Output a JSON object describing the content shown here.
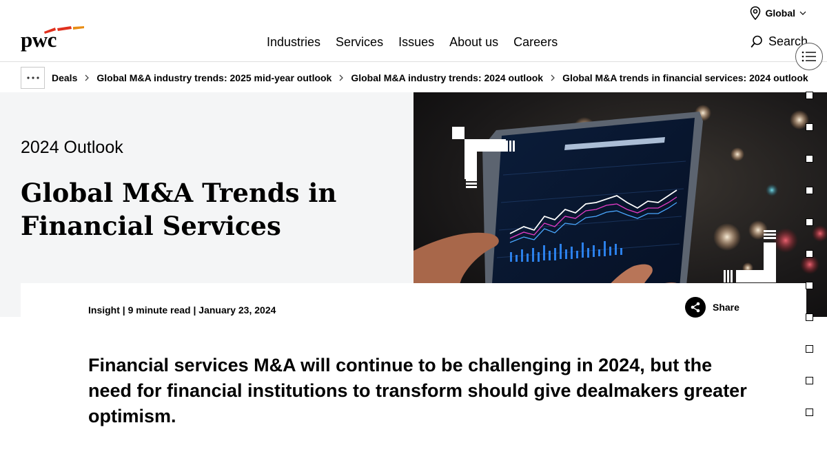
{
  "header": {
    "logo_text": "pwc",
    "region_label": "Global",
    "nav": [
      "Industries",
      "Services",
      "Issues",
      "About us",
      "Careers"
    ],
    "search_label": "Search"
  },
  "breadcrumb": {
    "items": [
      "Deals",
      "Global M&A industry trends: 2025 mid-year outlook",
      "Global M&A industry trends: 2024 outlook",
      "Global M&A trends in financial services: 2024 outlook"
    ]
  },
  "hero": {
    "eyebrow": "2024 Outlook",
    "title": "Global M&A Trends in Financial Services"
  },
  "article": {
    "meta": "Insight | 9 minute read | January 23, 2024",
    "share_label": "Share",
    "lead": "Financial services M&A will continue to be challenging in 2024, but the need for financial institutions to transform should give dealmakers greater optimism."
  },
  "colors": {
    "brand_orange": "#e0301e",
    "hero_bg": "#f4f5f6"
  },
  "icons": [
    "location-pin-icon",
    "chevron-down-icon",
    "search-icon",
    "more-icon",
    "chevron-right-icon",
    "share-icon",
    "list-icon"
  ]
}
